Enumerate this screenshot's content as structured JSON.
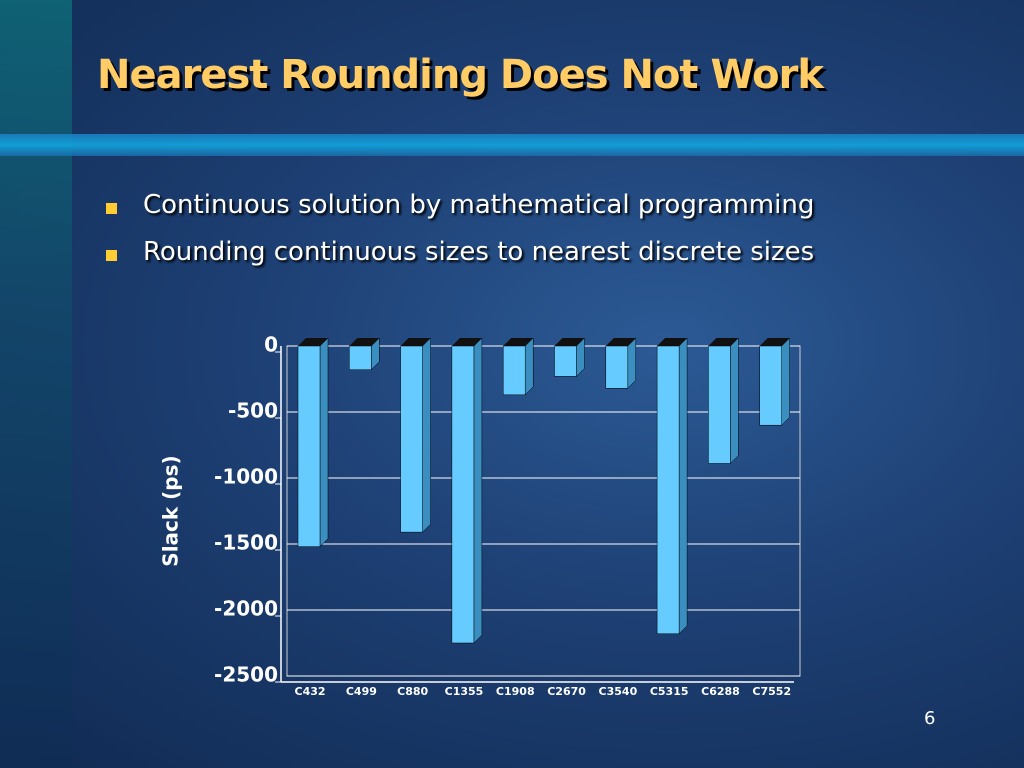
{
  "title": "Nearest Rounding Does Not Work",
  "bullets": [
    "Continuous solution by mathematical programming",
    "Rounding continuous sizes to nearest discrete sizes"
  ],
  "page_number": "6",
  "chart_data": {
    "type": "bar",
    "y_label": "Slack (ps)",
    "categories": [
      "C432",
      "C499",
      "C880",
      "C1355",
      "C1908",
      "C2670",
      "C3540",
      "C5315",
      "C6288",
      "C7552"
    ],
    "values": [
      -1520,
      -180,
      -1410,
      -2250,
      -370,
      -230,
      -320,
      -2180,
      -890,
      -600
    ],
    "color": "#66ccff",
    "ylim": [
      -2500,
      0
    ],
    "yticks": [
      0,
      -500,
      -1000,
      -1500,
      -2000,
      -2500
    ],
    "grid": true
  }
}
